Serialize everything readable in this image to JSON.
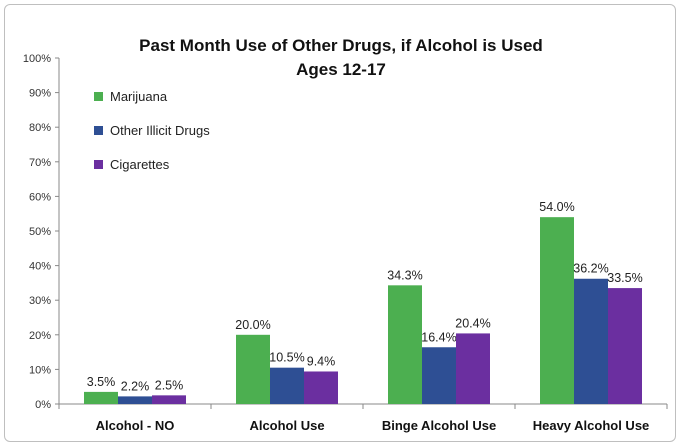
{
  "chart_data": {
    "type": "bar",
    "title": "Past Month Use of Other Drugs, if Alcohol is Used",
    "subtitle": "Ages 12-17",
    "categories": [
      "Alcohol - NO",
      "Alcohol Use",
      "Binge Alcohol Use",
      "Heavy Alcohol Use"
    ],
    "series": [
      {
        "name": "Marijuana",
        "values": [
          3.5,
          20.0,
          34.3,
          54.0
        ],
        "color": "#4caf50",
        "labels": [
          "3.5%",
          "20.0%",
          "34.3%",
          "54.0%"
        ]
      },
      {
        "name": "Other Illicit Drugs",
        "values": [
          2.2,
          10.5,
          16.4,
          36.2
        ],
        "color": "#2e4f94",
        "labels": [
          "2.2%",
          "10.5%",
          "16.4%",
          "36.2%"
        ]
      },
      {
        "name": "Cigarettes",
        "values": [
          2.5,
          9.4,
          20.4,
          33.5
        ],
        "color": "#6b2fa0",
        "labels": [
          "2.5%",
          "9.4%",
          "20.4%",
          "33.5%"
        ]
      }
    ],
    "ylim": [
      0,
      100
    ],
    "yticks": [
      "0%",
      "10%",
      "20%",
      "30%",
      "40%",
      "50%",
      "60%",
      "70%",
      "80%",
      "90%",
      "100%"
    ],
    "xlabel": "",
    "ylabel": "",
    "grid": false,
    "legend_position": "top-left"
  }
}
